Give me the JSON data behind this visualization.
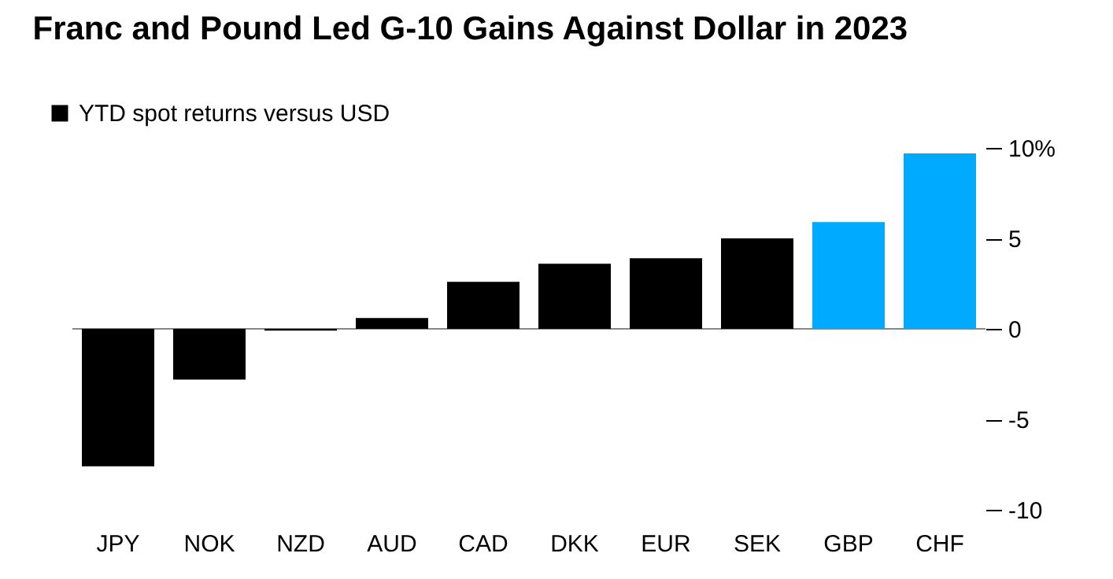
{
  "chart_data": {
    "type": "bar",
    "title": "Franc and Pound Led G-10 Gains Against Dollar in 2023",
    "categories": [
      "JPY",
      "NOK",
      "NZD",
      "AUD",
      "CAD",
      "DKK",
      "EUR",
      "SEK",
      "GBP",
      "CHF"
    ],
    "series": [
      {
        "name": "YTD spot returns versus USD",
        "color": "#000000",
        "values": [
          -7.6,
          -2.8,
          -0.1,
          0.6,
          2.6,
          3.6,
          3.9,
          5.0,
          5.9,
          9.7
        ],
        "colors": [
          "#000000",
          "#000000",
          "#000000",
          "#000000",
          "#000000",
          "#000000",
          "#000000",
          "#000000",
          "#00aaff",
          "#00aaff"
        ]
      }
    ],
    "ylim": [
      -10,
      10
    ],
    "yticks": [
      -10,
      -5,
      0,
      5,
      {
        "value": 10,
        "label": "10%"
      }
    ],
    "ref_lines": [
      {
        "axis": "y",
        "value": 0,
        "color": "#888888"
      }
    ],
    "grid": false,
    "legend": "top left"
  }
}
